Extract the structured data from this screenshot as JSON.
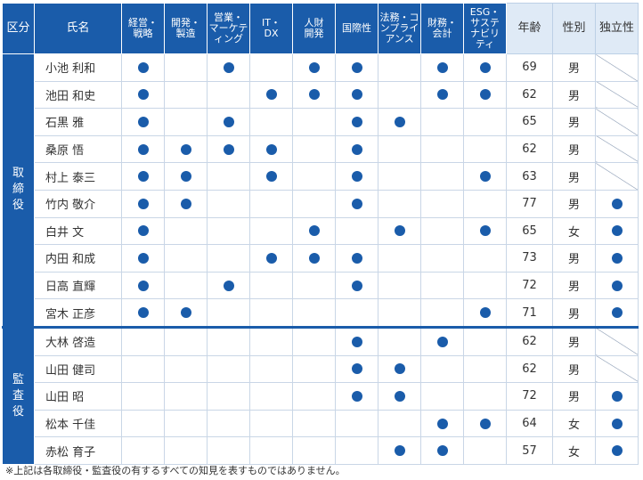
{
  "header": {
    "section": "区分",
    "name": "氏名",
    "skills": [
      [
        "経営・",
        "戦略"
      ],
      [
        "開発・",
        "製造"
      ],
      [
        "営業・",
        "マーケテ",
        "ィング"
      ],
      [
        "IT・",
        "DX"
      ],
      [
        "人財",
        "開発"
      ],
      [
        "国際性"
      ],
      [
        "法務・コ",
        "ンプライ",
        "アンス"
      ],
      [
        "財務・",
        "会計"
      ],
      [
        "ESG・",
        "サステ",
        "ナビリ",
        "ティ"
      ]
    ],
    "age": "年齢",
    "sex": "性別",
    "independence": "独立性"
  },
  "groups": [
    {
      "label": [
        "取",
        "締",
        "役"
      ],
      "members": [
        {
          "name": "小池 利和",
          "skills": [
            1,
            0,
            1,
            0,
            1,
            1,
            0,
            1,
            1
          ],
          "age": "69",
          "sex": "男",
          "independent": "diag"
        },
        {
          "name": "池田 和史",
          "skills": [
            1,
            0,
            0,
            1,
            1,
            1,
            0,
            1,
            1
          ],
          "age": "62",
          "sex": "男",
          "independent": "diag"
        },
        {
          "name": "石黒 雅",
          "skills": [
            1,
            0,
            1,
            0,
            0,
            1,
            1,
            0,
            0
          ],
          "age": "65",
          "sex": "男",
          "independent": "diag"
        },
        {
          "name": "桑原 悟",
          "skills": [
            1,
            1,
            1,
            1,
            0,
            1,
            0,
            0,
            0
          ],
          "age": "62",
          "sex": "男",
          "independent": "diag"
        },
        {
          "name": "村上 泰三",
          "skills": [
            1,
            1,
            0,
            1,
            0,
            1,
            0,
            0,
            1
          ],
          "age": "63",
          "sex": "男",
          "independent": "diag"
        },
        {
          "name": "竹内 敬介",
          "skills": [
            1,
            1,
            0,
            0,
            0,
            1,
            0,
            0,
            0
          ],
          "age": "77",
          "sex": "男",
          "independent": "dot"
        },
        {
          "name": "白井 文",
          "skills": [
            1,
            0,
            0,
            0,
            1,
            0,
            1,
            0,
            1
          ],
          "age": "65",
          "sex": "女",
          "independent": "dot"
        },
        {
          "name": "内田 和成",
          "skills": [
            1,
            0,
            0,
            1,
            1,
            1,
            0,
            0,
            0
          ],
          "age": "73",
          "sex": "男",
          "independent": "dot"
        },
        {
          "name": "日高 直輝",
          "skills": [
            1,
            0,
            1,
            0,
            0,
            1,
            0,
            0,
            0
          ],
          "age": "72",
          "sex": "男",
          "independent": "dot"
        },
        {
          "name": "宮木 正彦",
          "skills": [
            1,
            1,
            0,
            0,
            0,
            0,
            0,
            0,
            1
          ],
          "age": "71",
          "sex": "男",
          "independent": "dot"
        }
      ]
    },
    {
      "label": [
        "監",
        "査",
        "役"
      ],
      "members": [
        {
          "name": "大林 啓造",
          "skills": [
            0,
            0,
            0,
            0,
            0,
            1,
            0,
            1,
            0
          ],
          "age": "62",
          "sex": "男",
          "independent": "diag"
        },
        {
          "name": "山田 健司",
          "skills": [
            0,
            0,
            0,
            0,
            0,
            1,
            1,
            0,
            0
          ],
          "age": "62",
          "sex": "男",
          "independent": "diag"
        },
        {
          "name": "山田 昭",
          "skills": [
            0,
            0,
            0,
            0,
            0,
            1,
            1,
            0,
            0
          ],
          "age": "72",
          "sex": "男",
          "independent": "dot"
        },
        {
          "name": "松本 千佳",
          "skills": [
            0,
            0,
            0,
            0,
            0,
            0,
            0,
            1,
            1
          ],
          "age": "64",
          "sex": "女",
          "independent": "dot"
        },
        {
          "name": "赤松 育子",
          "skills": [
            0,
            0,
            0,
            0,
            0,
            0,
            1,
            1,
            0
          ],
          "age": "57",
          "sex": "女",
          "independent": "dot"
        }
      ]
    }
  ],
  "footnote": "※上記は各取締役・監査役の有するすべての知見を表すものではありません。",
  "colors": {
    "accent": "#1a5caa",
    "header_light": "#dfeaf6"
  }
}
